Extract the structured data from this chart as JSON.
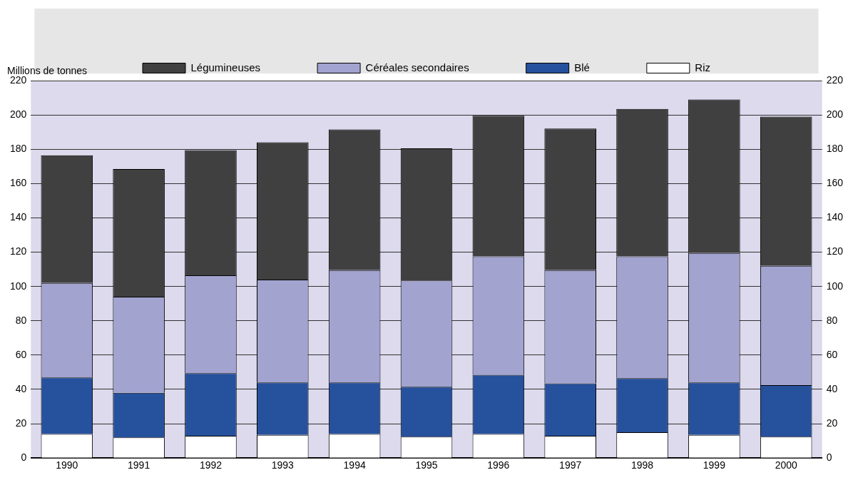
{
  "chart_data": {
    "type": "bar",
    "stacked": true,
    "ylabel": "Millions de tonnes",
    "categories": [
      "1990",
      "1991",
      "1992",
      "1993",
      "1994",
      "1995",
      "1996",
      "1997",
      "1998",
      "1999",
      "2000"
    ],
    "series": [
      {
        "name": "Riz",
        "color": "#ffffff",
        "values": [
          14,
          12,
          13,
          13.5,
          14,
          12.5,
          14,
          13,
          15,
          13.5,
          12.5
        ]
      },
      {
        "name": "Blé",
        "color": "#26519c",
        "values": [
          33,
          26,
          36.5,
          30.5,
          30,
          29,
          34.5,
          30.5,
          31.5,
          30.5,
          30
        ]
      },
      {
        "name": "Céréales secondaires",
        "color": "#a2a3cf",
        "values": [
          55,
          56,
          57,
          60,
          65.5,
          62,
          69,
          66,
          71,
          75.5,
          69.5
        ]
      },
      {
        "name": "Légumineuses",
        "color": "#404040",
        "values": [
          74.5,
          74.5,
          73,
          80,
          82,
          77,
          82,
          82.5,
          86,
          89.5,
          87
        ]
      }
    ],
    "ylim": [
      0,
      220
    ],
    "yticks": [
      0,
      20,
      40,
      60,
      80,
      100,
      120,
      140,
      160,
      180,
      200,
      220
    ],
    "y2lim": [
      0,
      220
    ],
    "y2ticks": [
      0,
      20,
      40,
      60,
      80,
      100,
      120,
      140,
      160,
      180,
      200,
      220
    ],
    "grid": "y",
    "legend": "top"
  }
}
